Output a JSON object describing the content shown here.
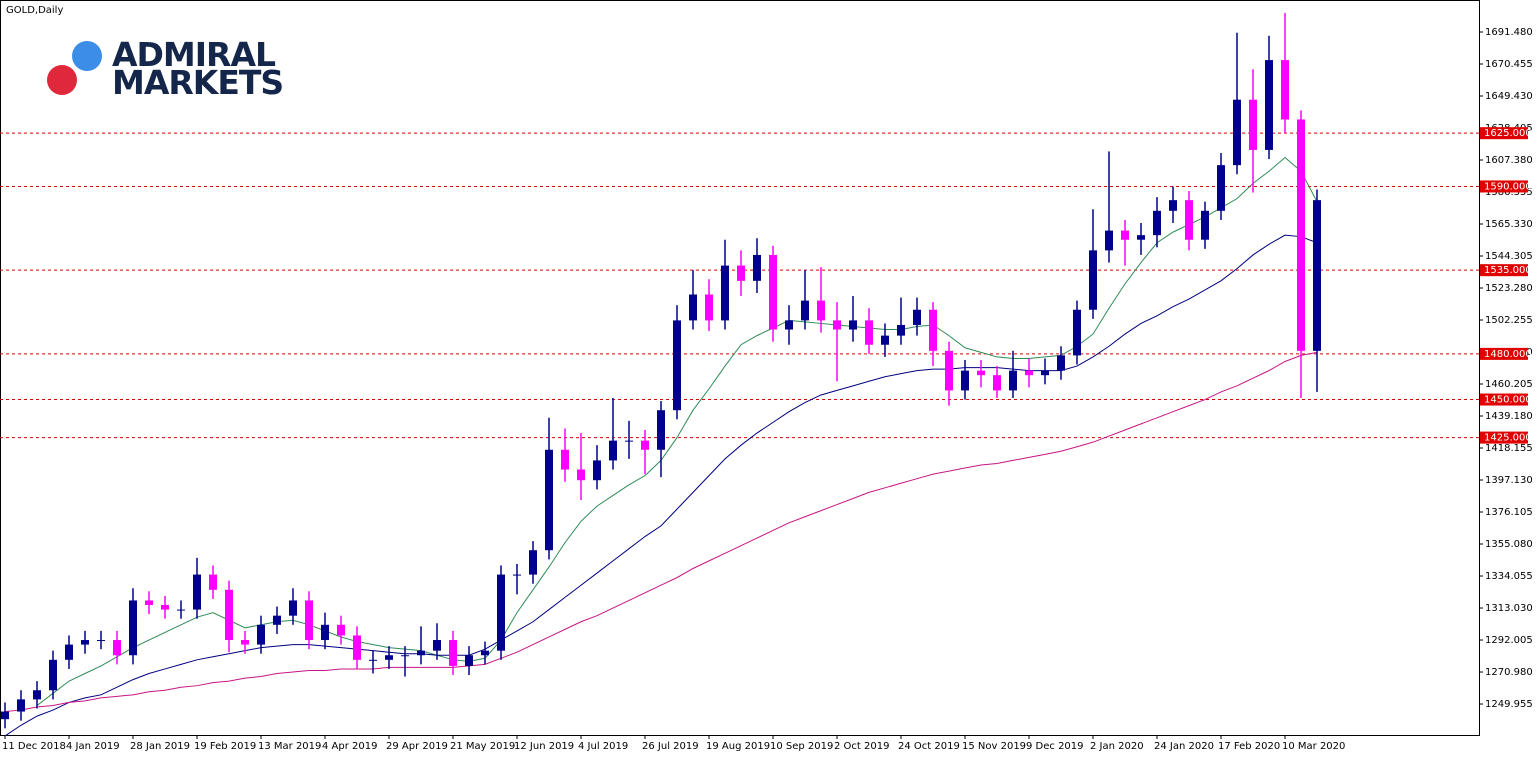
{
  "chart_data": {
    "type": "candlestick",
    "title": "GOLD,Daily",
    "logo": {
      "line1": "ADMIRAL",
      "line2": "MARKETS"
    },
    "categories": [
      "11 Dec 2018",
      null,
      null,
      null,
      "4 Jan 2019",
      null,
      null,
      null,
      "28 Jan 2019",
      null,
      null,
      null,
      "19 Feb 2019",
      null,
      null,
      null,
      "13 Mar 2019",
      null,
      null,
      null,
      "4 Apr 2019",
      null,
      null,
      null,
      "29 Apr 2019",
      null,
      null,
      null,
      "21 May 2019",
      null,
      null,
      null,
      "12 Jun 2019",
      null,
      null,
      null,
      "4 Jul 2019",
      null,
      null,
      null,
      "26 Jul 2019",
      null,
      null,
      null,
      "19 Aug 2019",
      null,
      null,
      null,
      "10 Sep 2019",
      null,
      null,
      null,
      "2 Oct 2019",
      null,
      null,
      null,
      "24 Oct 2019",
      null,
      null,
      null,
      "15 Nov 2019",
      null,
      null,
      null,
      "9 Dec 2019",
      null,
      null,
      null,
      "2 Jan 2020",
      null,
      null,
      null,
      "24 Jan 2020",
      null,
      null,
      null,
      "17 Feb 2020",
      null,
      null,
      null,
      "10 Mar 2020",
      null,
      null
    ],
    "open": [
      1240,
      1245,
      1253,
      1259,
      1279,
      1289,
      1292,
      1292,
      1282,
      1318,
      1315,
      1312,
      1312,
      1335,
      1325,
      1292,
      1289,
      1302,
      1308,
      1318,
      1292,
      1302,
      1295,
      1279,
      1279,
      1282,
      1282,
      1285,
      1292,
      1275,
      1282,
      1285,
      1335,
      1335,
      1351,
      1417,
      1404,
      1397,
      1410,
      1423,
      1423,
      1417,
      1443,
      1502,
      1519,
      1502,
      1538,
      1528,
      1545,
      1496,
      1502,
      1515,
      1502,
      1496,
      1502,
      1486,
      1492,
      1499,
      1509,
      1482,
      1456,
      1469,
      1466,
      1456,
      1469,
      1466,
      1469,
      1479,
      1509,
      1548,
      1561,
      1555,
      1558,
      1574,
      1581,
      1555,
      1574,
      1604,
      1647,
      1614,
      1673,
      1634,
      1482
    ],
    "high": [
      1251,
      1259,
      1265,
      1285,
      1295,
      1298,
      1298,
      1298,
      1326,
      1324,
      1321,
      1318,
      1346,
      1341,
      1331,
      1298,
      1308,
      1314,
      1326,
      1324,
      1310,
      1308,
      1301,
      1285,
      1288,
      1288,
      1301,
      1303,
      1298,
      1288,
      1291,
      1341,
      1342,
      1357,
      1438,
      1431,
      1428,
      1420,
      1451,
      1436,
      1430,
      1449,
      1512,
      1535,
      1529,
      1555,
      1548,
      1556,
      1551,
      1512,
      1535,
      1537,
      1514,
      1518,
      1510,
      1500,
      1517,
      1517,
      1514,
      1488,
      1476,
      1476,
      1472,
      1482,
      1477,
      1477,
      1485,
      1515,
      1575,
      1613,
      1568,
      1566,
      1583,
      1590,
      1587,
      1580,
      1612,
      1691,
      1667,
      1689,
      1704,
      1640,
      1588
    ],
    "low": [
      1234,
      1239,
      1247,
      1253,
      1273,
      1283,
      1286,
      1276,
      1276,
      1309,
      1306,
      1306,
      1306,
      1319,
      1284,
      1283,
      1283,
      1296,
      1302,
      1286,
      1286,
      1289,
      1273,
      1270,
      1273,
      1268,
      1276,
      1279,
      1269,
      1269,
      1276,
      1279,
      1322,
      1329,
      1345,
      1396,
      1384,
      1391,
      1404,
      1411,
      1401,
      1399,
      1437,
      1496,
      1495,
      1496,
      1518,
      1520,
      1488,
      1486,
      1496,
      1494,
      1462,
      1488,
      1480,
      1478,
      1486,
      1492,
      1472,
      1446,
      1450,
      1458,
      1451,
      1451,
      1458,
      1460,
      1463,
      1473,
      1503,
      1540,
      1538,
      1545,
      1550,
      1566,
      1548,
      1549,
      1568,
      1598,
      1586,
      1608,
      1625,
      1451,
      1455
    ],
    "close": [
      1245,
      1253,
      1259,
      1279,
      1289,
      1292,
      1292,
      1282,
      1318,
      1315,
      1312,
      1312,
      1335,
      1325,
      1292,
      1289,
      1302,
      1308,
      1318,
      1292,
      1302,
      1295,
      1279,
      1279,
      1282,
      1282,
      1285,
      1292,
      1275,
      1282,
      1285,
      1335,
      1335,
      1351,
      1417,
      1404,
      1397,
      1410,
      1423,
      1423,
      1417,
      1443,
      1502,
      1519,
      1502,
      1538,
      1528,
      1545,
      1496,
      1502,
      1515,
      1502,
      1496,
      1502,
      1486,
      1492,
      1499,
      1509,
      1482,
      1456,
      1469,
      1466,
      1456,
      1469,
      1466,
      1469,
      1479,
      1509,
      1548,
      1561,
      1555,
      1558,
      1574,
      1581,
      1555,
      1574,
      1604,
      1647,
      1614,
      1673,
      1634,
      1482,
      1581
    ],
    "up_color": "#00008b",
    "down_color": "#ff00ff",
    "lines": [
      {
        "color": "#2e8b57",
        "values": [
          null,
          null,
          1249,
          1257,
          1265,
          1270,
          1275,
          1281,
          1287,
          1292,
          1297,
          1302,
          1307,
          1310,
          1305,
          1300,
          1302,
          1304,
          1305,
          1302,
          1298,
          1294,
          1291,
          1289,
          1287,
          1286,
          1285,
          1282,
          1279,
          1278,
          1280,
          1292,
          1310,
          1325,
          1340,
          1356,
          1370,
          1380,
          1387,
          1394,
          1400,
          1410,
          1425,
          1443,
          1457,
          1472,
          1486,
          1492,
          1497,
          1502,
          1501,
          1500,
          1499,
          1498,
          1497,
          1496,
          1496,
          1498,
          1499,
          1492,
          1484,
          1481,
          1478,
          1477,
          1477,
          1478,
          1479,
          1485,
          1493,
          1510,
          1526,
          1540,
          1553,
          1560,
          1565,
          1570,
          1576,
          1582,
          1592,
          1600,
          1609,
          1600,
          1580
        ]
      },
      {
        "color": "#000080",
        "values": [
          1229,
          1236,
          1242,
          1246,
          1251,
          1254,
          1256,
          1261,
          1266,
          1270,
          1273,
          1276,
          1279,
          1281,
          1283,
          1285,
          1287,
          1288,
          1289,
          1289,
          1288,
          1287,
          1286,
          1285,
          1284,
          1283,
          1283,
          1282,
          1282,
          1282,
          1286,
          1292,
          1298,
          1304,
          1312,
          1320,
          1328,
          1336,
          1344,
          1352,
          1360,
          1367,
          1378,
          1389,
          1400,
          1411,
          1420,
          1428,
          1435,
          1442,
          1448,
          1453,
          1456,
          1459,
          1462,
          1465,
          1467,
          1469,
          1470,
          1470,
          1471,
          1471,
          1471,
          1470,
          1469,
          1469,
          1469,
          1472,
          1478,
          1485,
          1493,
          1500,
          1505,
          1511,
          1516,
          1522,
          1528,
          1536,
          1545,
          1552,
          1558,
          1557,
          1553
        ]
      },
      {
        "color": "#c71585",
        "values": [
          1245,
          1246,
          1248,
          1249,
          1251,
          1252,
          1254,
          1255,
          1256,
          1258,
          1259,
          1261,
          1262,
          1264,
          1265,
          1267,
          1268,
          1270,
          1271,
          1272,
          1272,
          1273,
          1273,
          1273,
          1274,
          1274,
          1274,
          1274,
          1274,
          1275,
          1276,
          1280,
          1284,
          1289,
          1294,
          1299,
          1304,
          1308,
          1313,
          1318,
          1323,
          1328,
          1333,
          1339,
          1344,
          1349,
          1354,
          1359,
          1364,
          1369,
          1373,
          1377,
          1381,
          1385,
          1389,
          1392,
          1395,
          1398,
          1401,
          1403,
          1405,
          1407,
          1408,
          1410,
          1412,
          1414,
          1416,
          1419,
          1422,
          1426,
          1430,
          1434,
          1438,
          1442,
          1446,
          1450,
          1455,
          1459,
          1464,
          1469,
          1475,
          1479,
          1481
        ]
      }
    ],
    "levels": [
      {
        "value": 1625,
        "label": "1625.000"
      },
      {
        "value": 1590,
        "label": "1590.000"
      },
      {
        "value": 1535,
        "label": "1535.000"
      },
      {
        "value": 1480,
        "label": "1480.000"
      },
      {
        "value": 1450,
        "label": "1450.000"
      },
      {
        "value": 1425,
        "label": "1425.000"
      }
    ],
    "level_color": "#e00000",
    "ylim": [
      1229.6,
      1712.5
    ],
    "yticks": [
      {
        "value": 1249.955,
        "label": "1249.955"
      },
      {
        "value": 1270.98,
        "label": "1270.980"
      },
      {
        "value": 1292.005,
        "label": "1292.005"
      },
      {
        "value": 1313.03,
        "label": "1313.030"
      },
      {
        "value": 1334.055,
        "label": "1334.055"
      },
      {
        "value": 1355.08,
        "label": "1355.080"
      },
      {
        "value": 1376.105,
        "label": "1376.105"
      },
      {
        "value": 1397.13,
        "label": "1397.130"
      },
      {
        "value": 1418.155,
        "label": "1418.155"
      },
      {
        "value": 1439.18,
        "label": "1439.180"
      },
      {
        "value": 1460.205,
        "label": "1460.205"
      },
      {
        "value": 1481.23,
        "label": "1481.230"
      },
      {
        "value": 1502.255,
        "label": "1502.255"
      },
      {
        "value": 1523.28,
        "label": "1523.280"
      },
      {
        "value": 1544.305,
        "label": "1544.305"
      },
      {
        "value": 1565.33,
        "label": "1565.330"
      },
      {
        "value": 1586.355,
        "label": "1586.355"
      },
      {
        "value": 1607.38,
        "label": "1607.380"
      },
      {
        "value": 1628.405,
        "label": "1628.405"
      },
      {
        "value": 1649.43,
        "label": "1649.430"
      },
      {
        "value": 1670.455,
        "label": "1670.455"
      },
      {
        "value": 1691.48,
        "label": "1691.480"
      }
    ]
  }
}
